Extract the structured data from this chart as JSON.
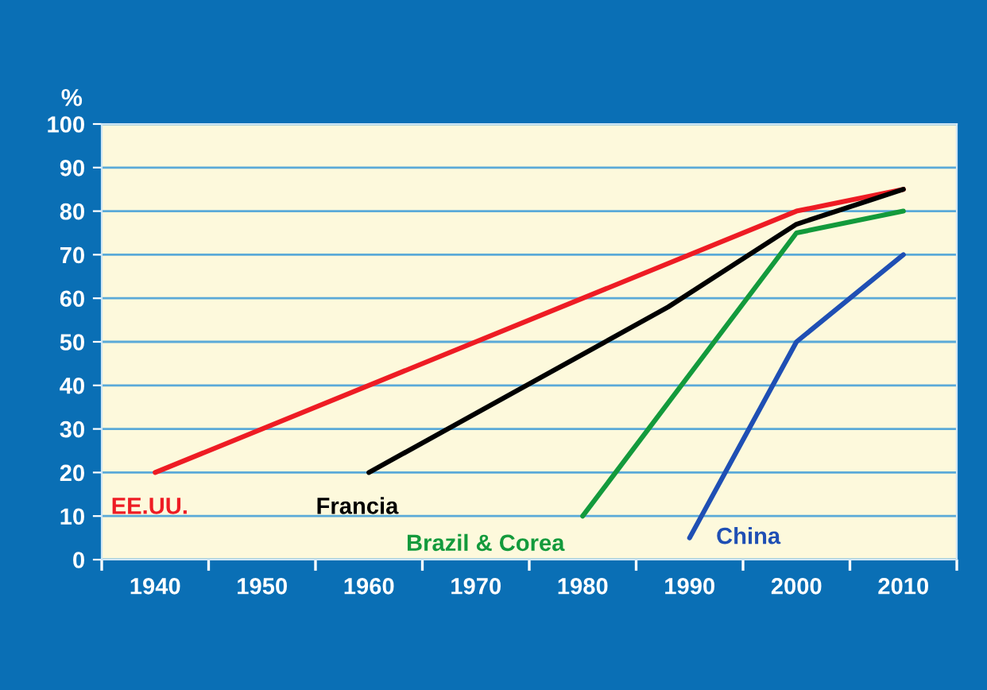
{
  "chart_data": {
    "type": "line",
    "ylabel": "%",
    "series": [
      {
        "name": "EE.UU.",
        "color": "#ee1c24",
        "x": [
          1940,
          2000,
          2010
        ],
        "values": [
          20,
          80,
          85
        ]
      },
      {
        "name": "Francia",
        "color": "#000000",
        "x": [
          1960,
          1988,
          2000,
          2010
        ],
        "values": [
          20,
          58,
          77,
          85
        ]
      },
      {
        "name": "Brazil & Corea",
        "color": "#139a3c",
        "x": [
          1980,
          2000,
          2010
        ],
        "values": [
          10,
          75,
          80
        ]
      },
      {
        "name": "China",
        "color": "#1f4fb4",
        "x": [
          1990,
          2000,
          2010
        ],
        "values": [
          5,
          50,
          70
        ]
      }
    ],
    "xlim": [
      1935,
      2015
    ],
    "xticks": [
      {
        "value": 1935,
        "label": null
      },
      1940,
      {
        "value": 1945,
        "label": null
      },
      1950,
      {
        "value": 1955,
        "label": null
      },
      1960,
      {
        "value": 1965,
        "label": null
      },
      1970,
      {
        "value": 1975,
        "label": null
      },
      1980,
      {
        "value": 1985,
        "label": null
      },
      1990,
      {
        "value": 1995,
        "label": null
      },
      2000,
      {
        "value": 2005,
        "label": null
      },
      2010,
      {
        "value": 2015,
        "label": null
      }
    ],
    "ylim": [
      0,
      100
    ],
    "yticks": [
      0,
      10,
      20,
      30,
      40,
      50,
      60,
      70,
      80,
      90,
      100
    ],
    "grid": "y",
    "legend": false,
    "marker": "none",
    "line_style": "solid"
  }
}
